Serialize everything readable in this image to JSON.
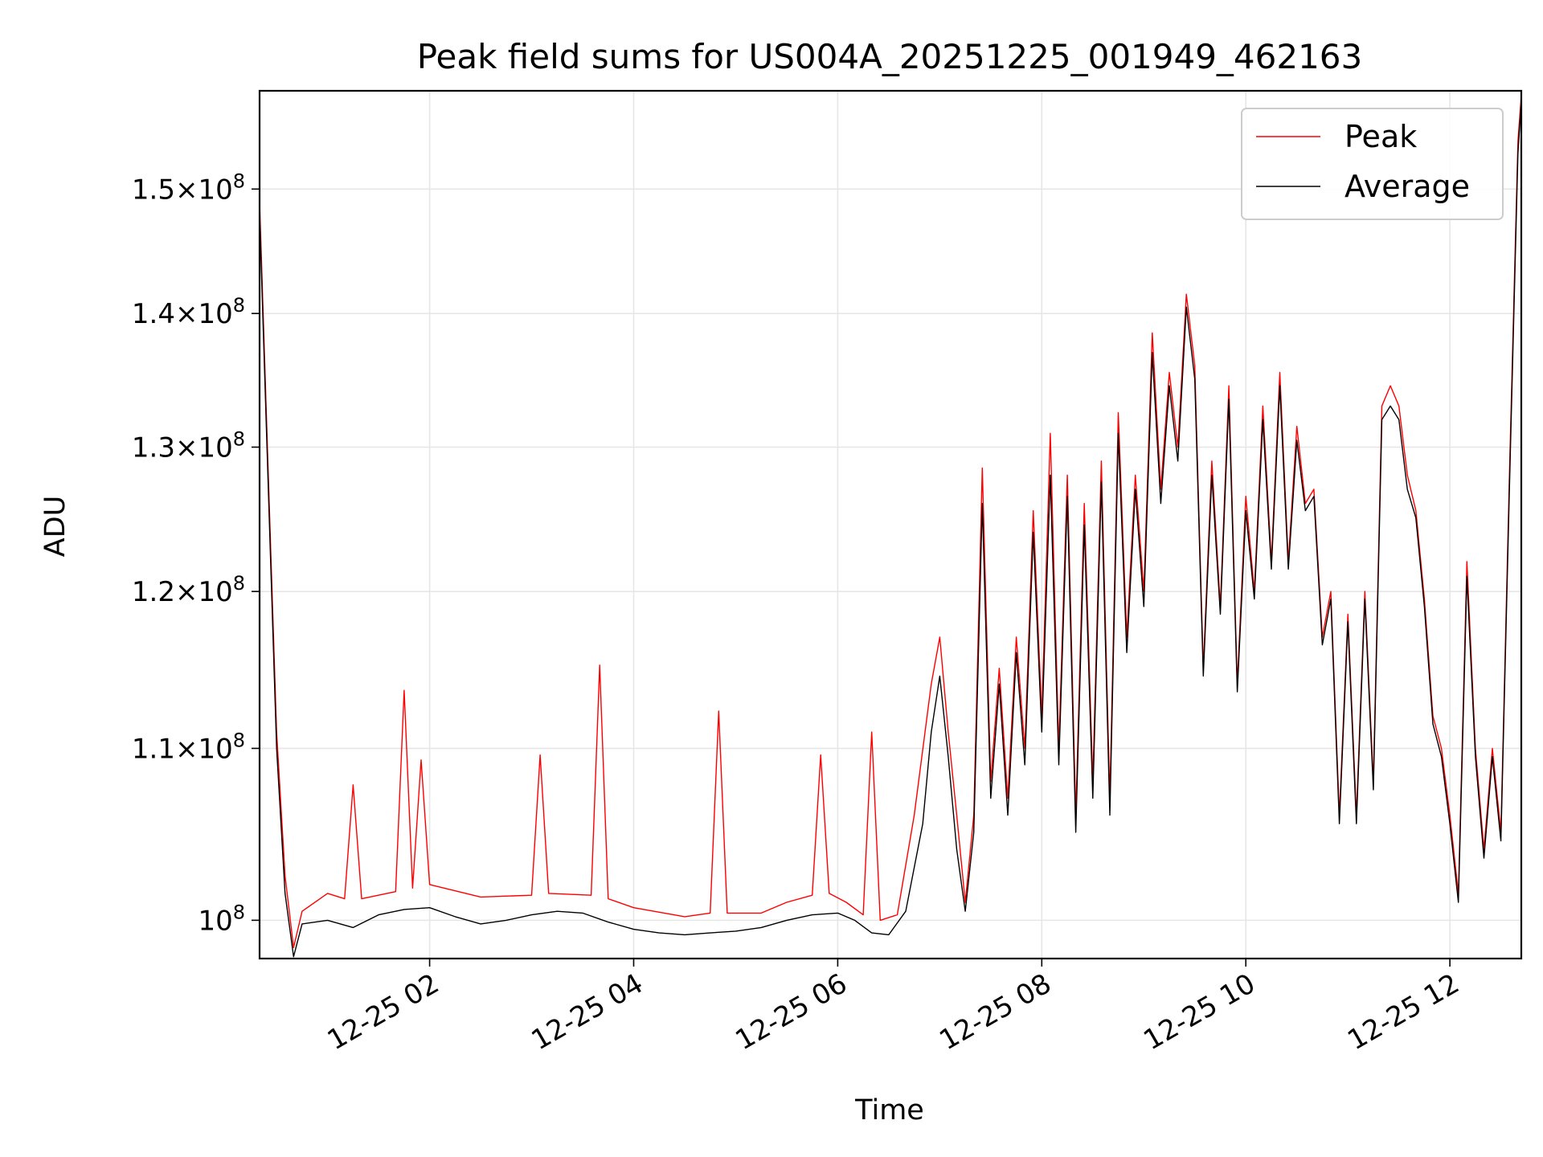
{
  "chart_data": {
    "type": "line",
    "title": "Peak field sums for US004A_20251225_001949_462163",
    "xlabel": "Time",
    "ylabel": "ADU",
    "x_range": [
      "2025-12-25 00:20",
      "2025-12-25 12:42"
    ],
    "ylim": [
      97900000,
      158400000
    ],
    "y_scale": "log",
    "grid": true,
    "legend_position": "top-right",
    "x_ticks": [
      {
        "value": "2025-12-25 02:00",
        "label": "12-25 02"
      },
      {
        "value": "2025-12-25 04:00",
        "label": "12-25 04"
      },
      {
        "value": "2025-12-25 06:00",
        "label": "12-25 06"
      },
      {
        "value": "2025-12-25 08:00",
        "label": "12-25 08"
      },
      {
        "value": "2025-12-25 10:00",
        "label": "12-25 10"
      },
      {
        "value": "2025-12-25 12:00",
        "label": "12-25 12"
      }
    ],
    "y_ticks": [
      {
        "value": 100000000,
        "mantissa": "",
        "exponent": "8"
      },
      {
        "value": 110000000,
        "mantissa": "1.1",
        "exponent": "8"
      },
      {
        "value": 120000000,
        "mantissa": "1.2",
        "exponent": "8"
      },
      {
        "value": 130000000,
        "mantissa": "1.3",
        "exponent": "8"
      },
      {
        "value": 140000000,
        "mantissa": "1.4",
        "exponent": "8"
      },
      {
        "value": 150000000,
        "mantissa": "1.5",
        "exponent": "8"
      }
    ],
    "series": [
      {
        "name": "Peak",
        "color": "#ff0000",
        "points": [
          [
            "2025-12-25 00:20",
            149000000
          ],
          [
            "2025-12-25 00:25",
            128500000
          ],
          [
            "2025-12-25 00:30",
            111000000
          ],
          [
            "2025-12-25 00:35",
            102500000
          ],
          [
            "2025-12-25 00:40",
            98500000
          ],
          [
            "2025-12-25 00:45",
            100500000
          ],
          [
            "2025-12-25 01:00",
            101500000
          ],
          [
            "2025-12-25 01:10",
            101200000
          ],
          [
            "2025-12-25 01:15",
            107800000
          ],
          [
            "2025-12-25 01:20",
            101200000
          ],
          [
            "2025-12-25 01:40",
            101600000
          ],
          [
            "2025-12-25 01:45",
            113600000
          ],
          [
            "2025-12-25 01:50",
            101800000
          ],
          [
            "2025-12-25 01:55",
            109300000
          ],
          [
            "2025-12-25 02:00",
            102000000
          ],
          [
            "2025-12-25 02:30",
            101300000
          ],
          [
            "2025-12-25 03:00",
            101400000
          ],
          [
            "2025-12-25 03:05",
            109600000
          ],
          [
            "2025-12-25 03:10",
            101500000
          ],
          [
            "2025-12-25 03:35",
            101400000
          ],
          [
            "2025-12-25 03:40",
            115200000
          ],
          [
            "2025-12-25 03:45",
            101200000
          ],
          [
            "2025-12-25 04:00",
            100700000
          ],
          [
            "2025-12-25 04:30",
            100200000
          ],
          [
            "2025-12-25 04:45",
            100400000
          ],
          [
            "2025-12-25 04:50",
            112300000
          ],
          [
            "2025-12-25 04:55",
            100400000
          ],
          [
            "2025-12-25 05:15",
            100400000
          ],
          [
            "2025-12-25 05:30",
            101000000
          ],
          [
            "2025-12-25 05:45",
            101400000
          ],
          [
            "2025-12-25 05:50",
            109600000
          ],
          [
            "2025-12-25 05:55",
            101500000
          ],
          [
            "2025-12-25 06:05",
            101000000
          ],
          [
            "2025-12-25 06:15",
            100300000
          ],
          [
            "2025-12-25 06:20",
            111000000
          ],
          [
            "2025-12-25 06:25",
            100000000
          ],
          [
            "2025-12-25 06:35",
            100300000
          ],
          [
            "2025-12-25 06:45",
            106000000
          ],
          [
            "2025-12-25 06:55",
            114000000
          ],
          [
            "2025-12-25 07:00",
            117000000
          ],
          [
            "2025-12-25 07:05",
            111000000
          ],
          [
            "2025-12-25 07:10",
            106000000
          ],
          [
            "2025-12-25 07:15",
            101000000
          ],
          [
            "2025-12-25 07:20",
            106000000
          ],
          [
            "2025-12-25 07:25",
            128500000
          ],
          [
            "2025-12-25 07:30",
            108000000
          ],
          [
            "2025-12-25 07:35",
            115000000
          ],
          [
            "2025-12-25 07:40",
            107000000
          ],
          [
            "2025-12-25 07:45",
            117000000
          ],
          [
            "2025-12-25 07:50",
            110000000
          ],
          [
            "2025-12-25 07:55",
            125500000
          ],
          [
            "2025-12-25 08:00",
            112000000
          ],
          [
            "2025-12-25 08:05",
            131000000
          ],
          [
            "2025-12-25 08:10",
            110000000
          ],
          [
            "2025-12-25 08:15",
            128000000
          ],
          [
            "2025-12-25 08:20",
            106000000
          ],
          [
            "2025-12-25 08:25",
            126000000
          ],
          [
            "2025-12-25 08:30",
            108000000
          ],
          [
            "2025-12-25 08:35",
            129000000
          ],
          [
            "2025-12-25 08:40",
            107000000
          ],
          [
            "2025-12-25 08:45",
            132500000
          ],
          [
            "2025-12-25 08:50",
            117000000
          ],
          [
            "2025-12-25 08:55",
            128000000
          ],
          [
            "2025-12-25 09:00",
            120000000
          ],
          [
            "2025-12-25 09:05",
            138500000
          ],
          [
            "2025-12-25 09:10",
            127000000
          ],
          [
            "2025-12-25 09:15",
            135500000
          ],
          [
            "2025-12-25 09:20",
            130000000
          ],
          [
            "2025-12-25 09:25",
            141500000
          ],
          [
            "2025-12-25 09:30",
            136000000
          ],
          [
            "2025-12-25 09:35",
            115000000
          ],
          [
            "2025-12-25 09:40",
            129000000
          ],
          [
            "2025-12-25 09:45",
            119000000
          ],
          [
            "2025-12-25 09:50",
            134500000
          ],
          [
            "2025-12-25 09:55",
            114000000
          ],
          [
            "2025-12-25 10:00",
            126500000
          ],
          [
            "2025-12-25 10:05",
            120000000
          ],
          [
            "2025-12-25 10:10",
            133000000
          ],
          [
            "2025-12-25 10:15",
            122000000
          ],
          [
            "2025-12-25 10:20",
            135500000
          ],
          [
            "2025-12-25 10:25",
            122000000
          ],
          [
            "2025-12-25 10:30",
            131500000
          ],
          [
            "2025-12-25 10:35",
            126000000
          ],
          [
            "2025-12-25 10:40",
            127000000
          ],
          [
            "2025-12-25 10:45",
            117000000
          ],
          [
            "2025-12-25 10:50",
            120000000
          ],
          [
            "2025-12-25 10:55",
            106000000
          ],
          [
            "2025-12-25 11:00",
            118500000
          ],
          [
            "2025-12-25 11:05",
            106000000
          ],
          [
            "2025-12-25 11:10",
            120000000
          ],
          [
            "2025-12-25 11:15",
            108000000
          ],
          [
            "2025-12-25 11:20",
            133000000
          ],
          [
            "2025-12-25 11:25",
            134500000
          ],
          [
            "2025-12-25 11:30",
            133000000
          ],
          [
            "2025-12-25 11:35",
            128000000
          ],
          [
            "2025-12-25 11:40",
            125500000
          ],
          [
            "2025-12-25 11:45",
            119500000
          ],
          [
            "2025-12-25 11:50",
            112000000
          ],
          [
            "2025-12-25 11:55",
            110000000
          ],
          [
            "2025-12-25 12:00",
            106000000
          ],
          [
            "2025-12-25 12:05",
            101500000
          ],
          [
            "2025-12-25 12:10",
            122000000
          ],
          [
            "2025-12-25 12:15",
            110000000
          ],
          [
            "2025-12-25 12:20",
            104000000
          ],
          [
            "2025-12-25 12:25",
            110000000
          ],
          [
            "2025-12-25 12:30",
            105000000
          ],
          [
            "2025-12-25 12:35",
            128000000
          ],
          [
            "2025-12-25 12:40",
            154000000
          ],
          [
            "2025-12-25 12:42",
            158000000
          ]
        ]
      },
      {
        "name": "Average",
        "color": "#000000",
        "points": [
          [
            "2025-12-25 00:20",
            148000000
          ],
          [
            "2025-12-25 00:25",
            127500000
          ],
          [
            "2025-12-25 00:30",
            110000000
          ],
          [
            "2025-12-25 00:35",
            101500000
          ],
          [
            "2025-12-25 00:40",
            98000000
          ],
          [
            "2025-12-25 00:45",
            99800000
          ],
          [
            "2025-12-25 01:00",
            100000000
          ],
          [
            "2025-12-25 01:15",
            99600000
          ],
          [
            "2025-12-25 01:30",
            100300000
          ],
          [
            "2025-12-25 01:45",
            100600000
          ],
          [
            "2025-12-25 02:00",
            100700000
          ],
          [
            "2025-12-25 02:15",
            100200000
          ],
          [
            "2025-12-25 02:30",
            99800000
          ],
          [
            "2025-12-25 02:45",
            100000000
          ],
          [
            "2025-12-25 03:00",
            100300000
          ],
          [
            "2025-12-25 03:15",
            100500000
          ],
          [
            "2025-12-25 03:30",
            100400000
          ],
          [
            "2025-12-25 03:45",
            99900000
          ],
          [
            "2025-12-25 04:00",
            99500000
          ],
          [
            "2025-12-25 04:15",
            99300000
          ],
          [
            "2025-12-25 04:30",
            99200000
          ],
          [
            "2025-12-25 04:45",
            99300000
          ],
          [
            "2025-12-25 05:00",
            99400000
          ],
          [
            "2025-12-25 05:15",
            99600000
          ],
          [
            "2025-12-25 05:30",
            100000000
          ],
          [
            "2025-12-25 05:45",
            100300000
          ],
          [
            "2025-12-25 06:00",
            100400000
          ],
          [
            "2025-12-25 06:10",
            100000000
          ],
          [
            "2025-12-25 06:20",
            99300000
          ],
          [
            "2025-12-25 06:30",
            99200000
          ],
          [
            "2025-12-25 06:40",
            100500000
          ],
          [
            "2025-12-25 06:50",
            105500000
          ],
          [
            "2025-12-25 06:55",
            111000000
          ],
          [
            "2025-12-25 07:00",
            114500000
          ],
          [
            "2025-12-25 07:05",
            109500000
          ],
          [
            "2025-12-25 07:10",
            104000000
          ],
          [
            "2025-12-25 07:15",
            100500000
          ],
          [
            "2025-12-25 07:20",
            105000000
          ],
          [
            "2025-12-25 07:25",
            126000000
          ],
          [
            "2025-12-25 07:30",
            107000000
          ],
          [
            "2025-12-25 07:35",
            114000000
          ],
          [
            "2025-12-25 07:40",
            106000000
          ],
          [
            "2025-12-25 07:45",
            116000000
          ],
          [
            "2025-12-25 07:50",
            109000000
          ],
          [
            "2025-12-25 07:55",
            124000000
          ],
          [
            "2025-12-25 08:00",
            111000000
          ],
          [
            "2025-12-25 08:05",
            128000000
          ],
          [
            "2025-12-25 08:10",
            109000000
          ],
          [
            "2025-12-25 08:15",
            126500000
          ],
          [
            "2025-12-25 08:20",
            105000000
          ],
          [
            "2025-12-25 08:25",
            124500000
          ],
          [
            "2025-12-25 08:30",
            107000000
          ],
          [
            "2025-12-25 08:35",
            127500000
          ],
          [
            "2025-12-25 08:40",
            106000000
          ],
          [
            "2025-12-25 08:45",
            131000000
          ],
          [
            "2025-12-25 08:50",
            116000000
          ],
          [
            "2025-12-25 08:55",
            127000000
          ],
          [
            "2025-12-25 09:00",
            119000000
          ],
          [
            "2025-12-25 09:05",
            137000000
          ],
          [
            "2025-12-25 09:10",
            126000000
          ],
          [
            "2025-12-25 09:15",
            134500000
          ],
          [
            "2025-12-25 09:20",
            129000000
          ],
          [
            "2025-12-25 09:25",
            140500000
          ],
          [
            "2025-12-25 09:30",
            135000000
          ],
          [
            "2025-12-25 09:35",
            114500000
          ],
          [
            "2025-12-25 09:40",
            128000000
          ],
          [
            "2025-12-25 09:45",
            118500000
          ],
          [
            "2025-12-25 09:50",
            133500000
          ],
          [
            "2025-12-25 09:55",
            113500000
          ],
          [
            "2025-12-25 10:00",
            125500000
          ],
          [
            "2025-12-25 10:05",
            119500000
          ],
          [
            "2025-12-25 10:10",
            132000000
          ],
          [
            "2025-12-25 10:15",
            121500000
          ],
          [
            "2025-12-25 10:20",
            134500000
          ],
          [
            "2025-12-25 10:25",
            121500000
          ],
          [
            "2025-12-25 10:30",
            130500000
          ],
          [
            "2025-12-25 10:35",
            125500000
          ],
          [
            "2025-12-25 10:40",
            126500000
          ],
          [
            "2025-12-25 10:45",
            116500000
          ],
          [
            "2025-12-25 10:50",
            119500000
          ],
          [
            "2025-12-25 10:55",
            105500000
          ],
          [
            "2025-12-25 11:00",
            118000000
          ],
          [
            "2025-12-25 11:05",
            105500000
          ],
          [
            "2025-12-25 11:10",
            119500000
          ],
          [
            "2025-12-25 11:15",
            107500000
          ],
          [
            "2025-12-25 11:20",
            132000000
          ],
          [
            "2025-12-25 11:25",
            133000000
          ],
          [
            "2025-12-25 11:30",
            132000000
          ],
          [
            "2025-12-25 11:35",
            127000000
          ],
          [
            "2025-12-25 11:40",
            125000000
          ],
          [
            "2025-12-25 11:45",
            119000000
          ],
          [
            "2025-12-25 11:50",
            111500000
          ],
          [
            "2025-12-25 11:55",
            109500000
          ],
          [
            "2025-12-25 12:00",
            105500000
          ],
          [
            "2025-12-25 12:05",
            101000000
          ],
          [
            "2025-12-25 12:10",
            121000000
          ],
          [
            "2025-12-25 12:15",
            109500000
          ],
          [
            "2025-12-25 12:20",
            103500000
          ],
          [
            "2025-12-25 12:25",
            109500000
          ],
          [
            "2025-12-25 12:30",
            104500000
          ],
          [
            "2025-12-25 12:35",
            127000000
          ],
          [
            "2025-12-25 12:40",
            153000000
          ],
          [
            "2025-12-25 12:42",
            157500000
          ]
        ]
      }
    ]
  }
}
